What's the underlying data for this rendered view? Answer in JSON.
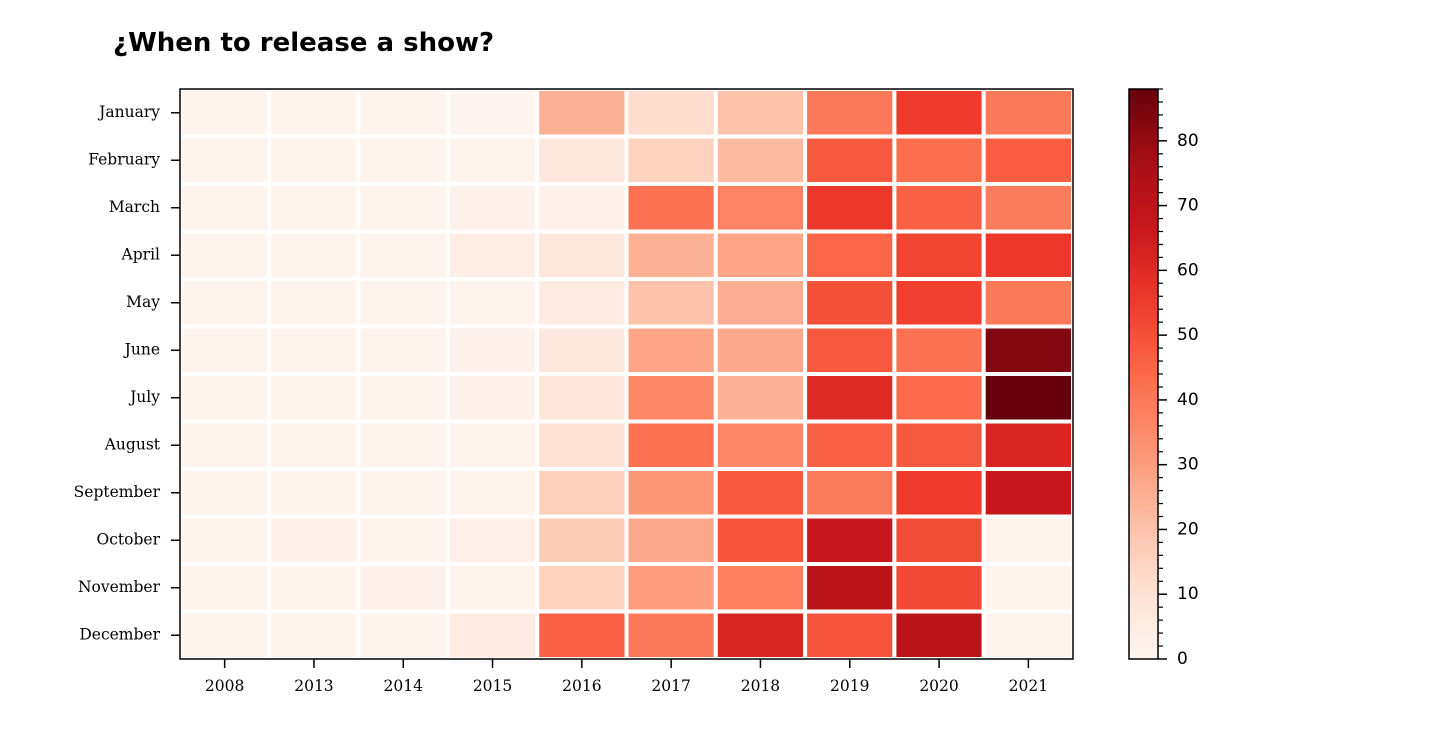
{
  "chart_data": {
    "type": "heatmap",
    "title": "¿When to release a show?",
    "xlabel": "",
    "ylabel": "",
    "x": [
      "2008",
      "2013",
      "2014",
      "2015",
      "2016",
      "2017",
      "2018",
      "2019",
      "2020",
      "2021"
    ],
    "y": [
      "January",
      "February",
      "March",
      "April",
      "May",
      "June",
      "July",
      "August",
      "September",
      "October",
      "November",
      "December"
    ],
    "values": [
      [
        1,
        1,
        1,
        0,
        25,
        12,
        20,
        40,
        55,
        40
      ],
      [
        1,
        1,
        1,
        1,
        7,
        15,
        22,
        48,
        43,
        47
      ],
      [
        1,
        1,
        1,
        2,
        2,
        42,
        37,
        56,
        46,
        39
      ],
      [
        1,
        1,
        1,
        4,
        7,
        25,
        28,
        45,
        53,
        56
      ],
      [
        1,
        1,
        1,
        1,
        5,
        20,
        26,
        50,
        54,
        40
      ],
      [
        1,
        1,
        1,
        2,
        7,
        28,
        27,
        48,
        42,
        83
      ],
      [
        1,
        1,
        1,
        2,
        8,
        36,
        25,
        60,
        44,
        88
      ],
      [
        1,
        1,
        1,
        1,
        10,
        42,
        36,
        46,
        48,
        62
      ],
      [
        1,
        1,
        1,
        1,
        16,
        32,
        48,
        39,
        55,
        67
      ],
      [
        1,
        2,
        1,
        3,
        17,
        27,
        49,
        67,
        51,
        1
      ],
      [
        1,
        1,
        2,
        1,
        15,
        30,
        38,
        71,
        52,
        1
      ],
      [
        1,
        1,
        1,
        5,
        46,
        40,
        62,
        49,
        71,
        1
      ]
    ],
    "colorbar": {
      "min": 0,
      "max": 88,
      "ticks": [
        0,
        10,
        20,
        30,
        40,
        50,
        60,
        70,
        80
      ],
      "colormap": "Reds"
    },
    "grid": false,
    "cell_edge_color": "#ffffff"
  }
}
